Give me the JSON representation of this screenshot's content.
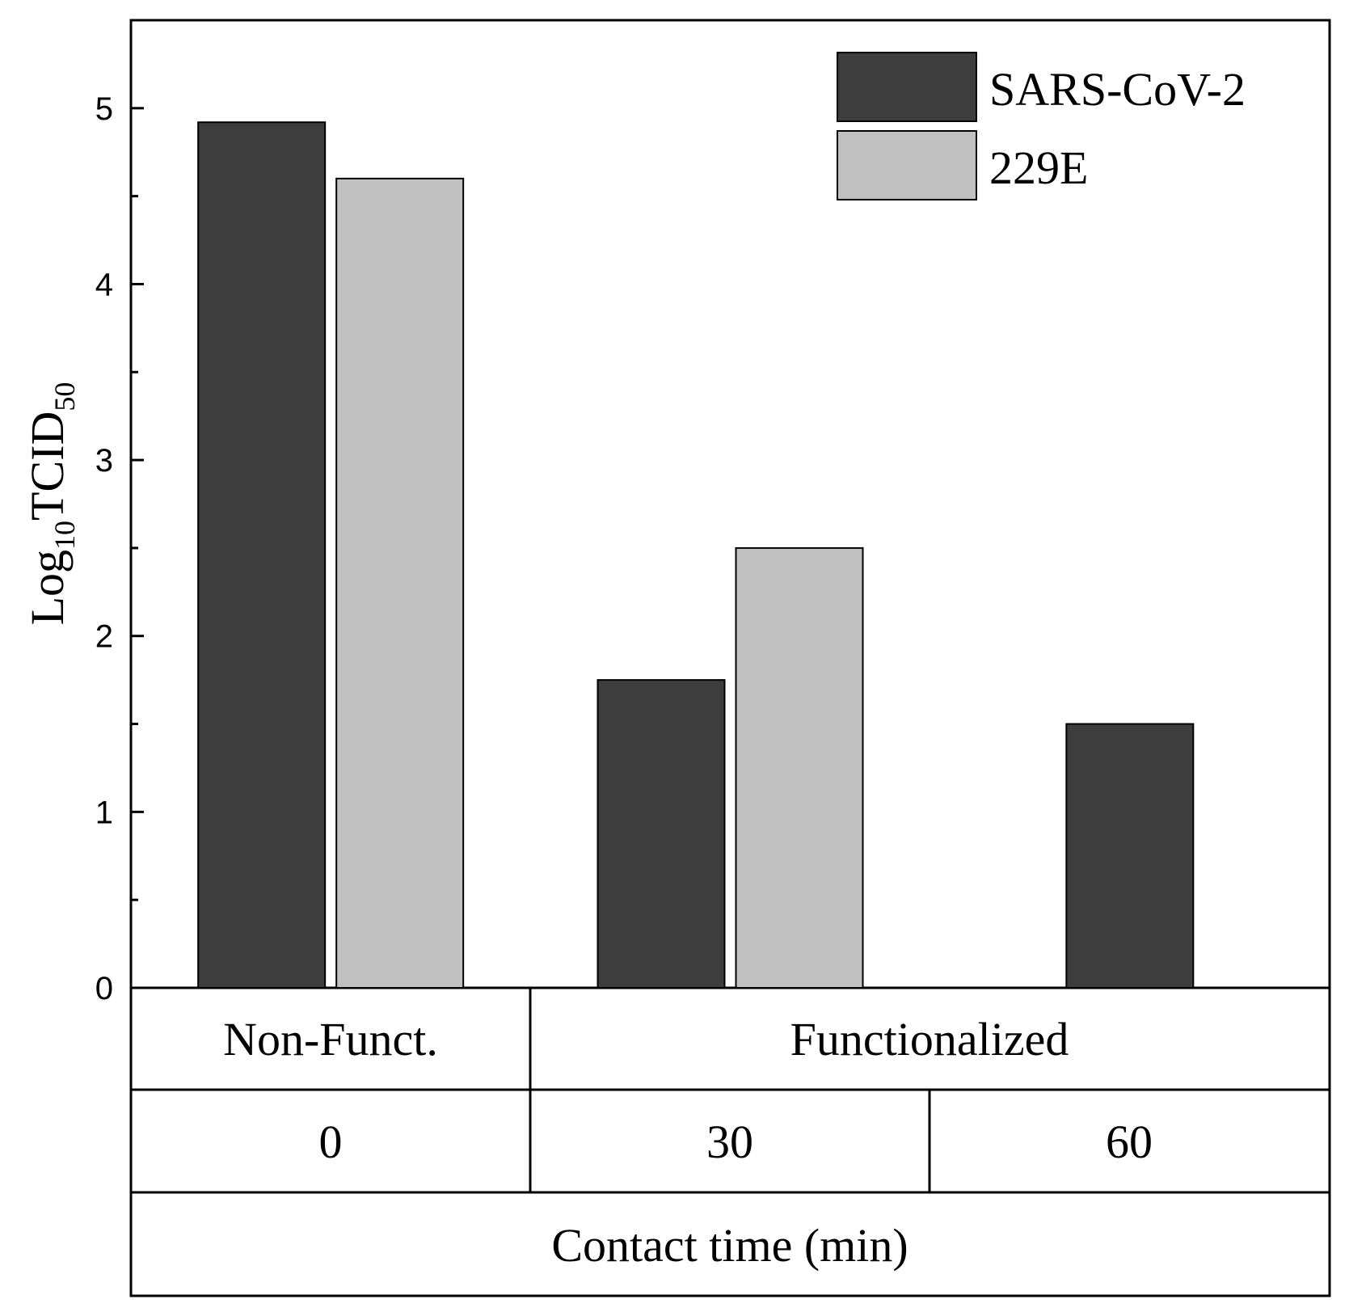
{
  "chart_data": {
    "type": "bar",
    "ylabel": {
      "base": "Log",
      "sub1": "10",
      "mid": "TCID",
      "sub2": "50"
    },
    "ylim": [
      0,
      5.5
    ],
    "yticks": [
      0,
      1,
      2,
      3,
      4,
      5
    ],
    "ytick_labels": [
      "0",
      "1",
      "2",
      "3",
      "4",
      "5"
    ],
    "categories": [
      "0",
      "30",
      "60"
    ],
    "groups": [
      {
        "label": "Non-Funct.",
        "span": 1
      },
      {
        "label": "Functionalized",
        "span": 2
      }
    ],
    "xlabel": "Contact time (min)",
    "series": [
      {
        "name": "SARS-CoV-2",
        "color": "#3d3d3d",
        "values": [
          4.92,
          1.75,
          1.5
        ]
      },
      {
        "name": "229E",
        "color": "#c0c0c0",
        "values": [
          4.6,
          2.5,
          null
        ]
      }
    ],
    "legend_position": "top-right",
    "grid": false
  }
}
